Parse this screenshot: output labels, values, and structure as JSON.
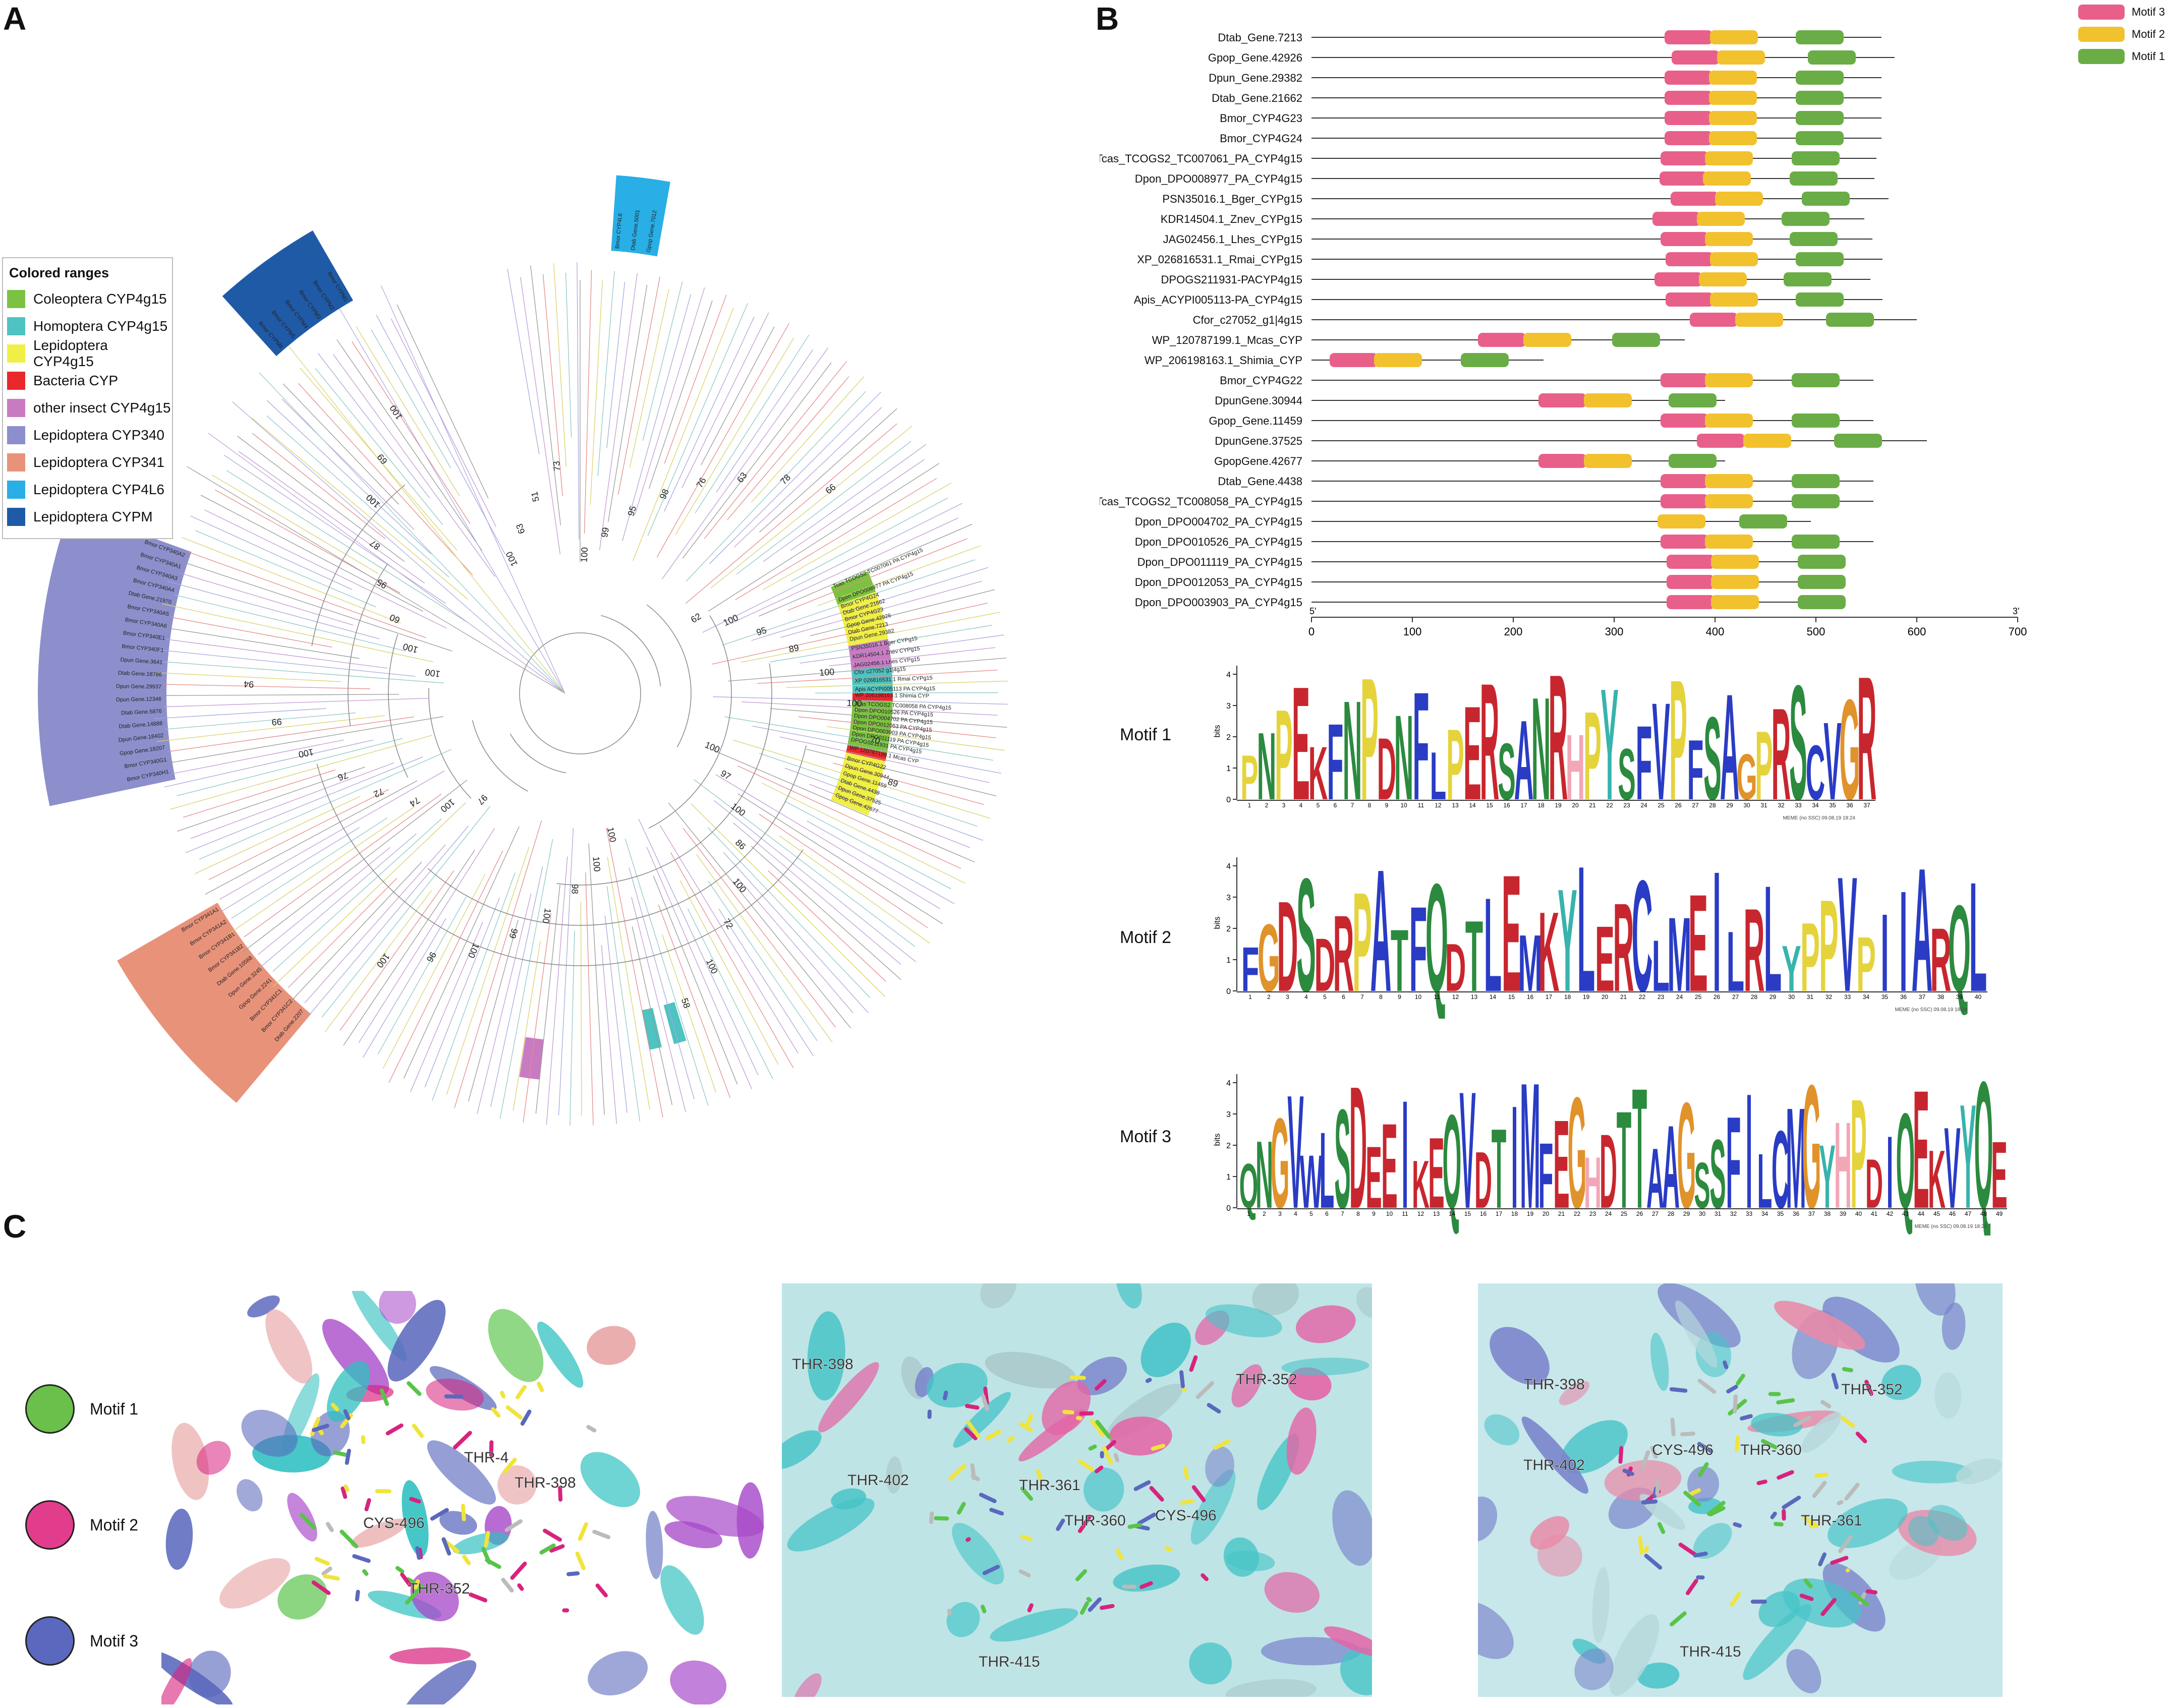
{
  "panels": {
    "a": "A",
    "b": "B",
    "c": "C"
  },
  "legend": {
    "title": "Colored ranges",
    "items": [
      {
        "label": "Coleoptera CYP4g15",
        "color": "#7cc242"
      },
      {
        "label": "Homoptera CYP4g15",
        "color": "#4ec3c1"
      },
      {
        "label": "Lepidoptera CYP4g15",
        "color": "#f0ef45"
      },
      {
        "label": "Bacteria CYP",
        "color": "#e8282b"
      },
      {
        "label": "other insect CYP4g15",
        "color": "#c97bc2"
      },
      {
        "label": "Lepidoptera CYP340",
        "color": "#8c8fcb"
      },
      {
        "label": "Lepidoptera CYP341",
        "color": "#e8927a"
      },
      {
        "label": "Lepidoptera CYP4L6",
        "color": "#29aee6"
      },
      {
        "label": "Lepidoptera CYPM",
        "color": "#1f5aa6"
      }
    ]
  },
  "motif_legend": [
    {
      "label": "Motif 3",
      "color": "#e8608a"
    },
    {
      "label": "Motif 2",
      "color": "#f2c12e"
    },
    {
      "label": "Motif 1",
      "color": "#6aad46"
    }
  ],
  "genes": [
    {
      "name": "Dtab_Gene.7213",
      "len": 565,
      "m": [
        350,
        395,
        480
      ]
    },
    {
      "name": "Gpop_Gene.42926",
      "len": 578,
      "m": [
        357,
        402,
        492
      ]
    },
    {
      "name": "Dpun_Gene.29382",
      "len": 565,
      "m": [
        350,
        394,
        480
      ]
    },
    {
      "name": "Dtab_Gene.21662",
      "len": 565,
      "m": [
        350,
        394,
        480
      ]
    },
    {
      "name": "Bmor_CYP4G23",
      "len": 565,
      "m": [
        350,
        394,
        480
      ]
    },
    {
      "name": "Bmor_CYP4G24",
      "len": 565,
      "m": [
        350,
        394,
        480
      ]
    },
    {
      "name": "Tcas_TCOGS2_TC007061_PA_CYP4g15",
      "len": 560,
      "m": [
        346,
        390,
        476
      ]
    },
    {
      "name": "Dpon_DPO008977_PA_CYP4g15",
      "len": 558,
      "m": [
        345,
        388,
        474
      ]
    },
    {
      "name": "PSN35016.1_Bger_CYPg15",
      "len": 572,
      "m": [
        356,
        400,
        486
      ]
    },
    {
      "name": "KDR14504.1_Znev_CYPg15",
      "len": 548,
      "m": [
        338,
        382,
        466
      ]
    },
    {
      "name": "JAG02456.1_Lhes_CYPg15",
      "len": 556,
      "m": [
        346,
        390,
        474
      ]
    },
    {
      "name": "XP_026816531.1_Rmai_CYPg15",
      "len": 566,
      "m": [
        351,
        395,
        480
      ]
    },
    {
      "name": "DPOGS211931-PACYP4g15",
      "len": 554,
      "m": [
        340,
        384,
        468
      ]
    },
    {
      "name": "Apis_ACYPI005113-PA_CYP4g15",
      "len": 566,
      "m": [
        351,
        395,
        480
      ]
    },
    {
      "name": "Cfor_c27052_g1|4g15",
      "len": 600,
      "m": [
        375,
        420,
        510
      ]
    },
    {
      "name": "WP_120787199.1_Mcas_CYP",
      "len": 370,
      "m": [
        165,
        210,
        298
      ]
    },
    {
      "name": "WP_206198163.1_Shimia_CYP",
      "len": 230,
      "m": [
        18,
        62,
        148
      ]
    },
    {
      "name": "Bmor_CYP4G22",
      "len": 557,
      "m": [
        346,
        390,
        476
      ]
    },
    {
      "name": "DpunGene.30944",
      "len": 410,
      "m": [
        225,
        270,
        354
      ]
    },
    {
      "name": "Gpop_Gene.11459",
      "len": 557,
      "m": [
        346,
        390,
        476
      ]
    },
    {
      "name": "DpunGene.37525",
      "len": 610,
      "m": [
        382,
        428,
        518
      ]
    },
    {
      "name": "GpopGene.42677",
      "len": 410,
      "m": [
        225,
        270,
        354
      ]
    },
    {
      "name": "Dtab_Gene.4438",
      "len": 557,
      "m": [
        346,
        390,
        476
      ]
    },
    {
      "name": "Tcas_TCOGS2_TC008058_PA_CYP4g15",
      "len": 557,
      "m": [
        346,
        390,
        476
      ]
    },
    {
      "name": "Dpon_DPO004702_PA_CYP4g15",
      "len": 495,
      "m": [
        null,
        343,
        424
      ]
    },
    {
      "name": "Dpon_DPO010526_PA_CYP4g15",
      "len": 557,
      "m": [
        346,
        390,
        476
      ]
    },
    {
      "name": "Dpon_DPO011119_PA_CYP4g15",
      "len": 507,
      "m": [
        352,
        396,
        482
      ]
    },
    {
      "name": "Dpon_DPO012053_PA_CYP4g15",
      "len": 507,
      "m": [
        352,
        396,
        482
      ]
    },
    {
      "name": "Dpon_DPO003903_PA_CYP4g15",
      "len": 507,
      "m": [
        352,
        396,
        482
      ]
    }
  ],
  "axis": {
    "ticks": [
      "0",
      "100",
      "200",
      "300",
      "400",
      "500",
      "600",
      "700"
    ],
    "start_label": "5'",
    "end_label": "3'"
  },
  "logos": {
    "motif1": {
      "label": "Motif 1",
      "seq": "PNPEKFNPDNFLPERSANRHPYSFVPFSAGPRSCVGR"
    },
    "motif2": {
      "label": "Motif 2",
      "seq": "FGDSDRPATFQDTLEMKYLERCLMEILRLYPPVPIIARQL"
    },
    "motif3": {
      "label": "Motif 3",
      "seq": "QNGVWLSDEEIKEQVDTIMFEGHDTTAAGSSFILCMGYHPDIQEKVYQE"
    },
    "ylabel": "bits",
    "yticks": [
      "0",
      "1",
      "2",
      "3",
      "4"
    ],
    "credit": "MEME (no SSC) 09.08.19 18:24"
  },
  "structure_legend": [
    {
      "label": "Motif 1",
      "color": "#6ac04a"
    },
    {
      "label": "Motif 2",
      "color": "#e23d8d"
    },
    {
      "label": "Motif 3",
      "color": "#5a68bd"
    }
  ],
  "residues": {
    "p1": [
      "CYS-496",
      "THR-398",
      "THR-352",
      "THR-4"
    ],
    "p2": [
      "THR-398",
      "THR-402",
      "THR-352",
      "THR-361",
      "THR-360",
      "CYS-496",
      "THR-415"
    ],
    "p3": [
      "THR-398",
      "THR-402",
      "CYS-496",
      "THR-360",
      "THR-352",
      "THR-361",
      "THR-415"
    ]
  },
  "tree_labels_arc1": [
    "Bmor CYP340A2",
    "Bmor CYP340A1",
    "Bmor CYP340A3",
    "Bmor CYP340A4",
    "Dtab Gene.21970",
    "Bmor CYP340A5",
    "Bmor CYP340A6",
    "Bmor CYP340E1",
    "Bmor CYP340F1",
    "Dpun Gene.3641",
    "Dtab Gene.18786",
    "Dpun Gene.29937",
    "Dpun Gene.12346",
    "Dtab Gene.5876",
    "Dtab Gene.14888",
    "Dpun Gene.18402",
    "Gpop Gene.18207",
    "Bmor CYP340G1",
    "Bmor CYP340H1"
  ],
  "tree_labels_arc2": [
    "Bmor CYP341A1",
    "Bmor CYP341A2",
    "Bmor CYP341B1",
    "Bmor CYP341B2",
    "Dtab Gene.10568",
    "Dpun Gene.3245",
    "Gpop Gene.2241",
    "Bmor CYP341C1",
    "Bmor CYP341C2",
    "Dtab Gene.2207"
  ],
  "tree_labels_green": [
    "Tcas TCOGS2 TC007061 PA CYP4g15",
    "Dpon DPO008977 PA CYP4g15"
  ],
  "tree_labels_yellow": [
    "Bmor CYP4G24",
    "Dtab Gene.21662",
    "Bmor CYP4G23",
    "Gpop Gene.42926",
    "Dtab Gene.7213",
    "Dpun Gene.29382"
  ],
  "tree_labels_purple": [
    "PSN35016.1 Bger CYPg15",
    "KDR14504.1 Znev CYPg15",
    "JAG02456.1 Lhes CYPg15"
  ],
  "tree_labels_teal": [
    "Cfor c27052 g1|4g15",
    "XP 026816531.1 Rmai CYPg15",
    "Apis ACYPI005113 PA CYP4g15"
  ],
  "tree_labels_red": [
    "WP 206198163.1 Shimia CYP"
  ],
  "tree_labels_green2": [
    "Tcas TCOGS2 TC008058 PA CYP4g15",
    "Dpon DPO010526 PA CYP4g15",
    "Dpon DPO004702 PA CYP4g15",
    "Dpon DPO012053 PA CYP4g15",
    "Dpon DPO003903 PA CYP4g15",
    "Dpon DPO011119 PA CYP4g15",
    "DPOGS211931 PA CYP4g15"
  ],
  "tree_labels_red2": [
    "WP 120787199.1 Mcas CYP"
  ],
  "tree_labels_yellow2": [
    "Bmor CYP4G22",
    "Dpun Gene.30944",
    "Gpop Gene.11459",
    "Dtab Gene.4438",
    "Dpun Gene.37525",
    "Gpop Gene.42677"
  ],
  "tree_labels_cypm": [
    "Bmor CYPM1",
    "Bmor CYPM2",
    "Bmor CYPM3",
    "Bmor CYPM4",
    "Bmor CYPM5",
    "Bmor CYPM6"
  ],
  "tree_labels_4l6": [
    "Bmor CYP4L6",
    "Dtab Gene.5001",
    "Gpop Gene.7012"
  ],
  "bootstrap": [
    "100",
    "99",
    "95",
    "98",
    "76",
    "63",
    "78",
    "66",
    "62",
    "100",
    "95",
    "89",
    "100",
    "100",
    "70",
    "89",
    "100",
    "97",
    "100",
    "86",
    "100",
    "72",
    "100",
    "58",
    "100",
    "100",
    "98",
    "100",
    "99",
    "100",
    "96",
    "100",
    "97",
    "100",
    "74",
    "72",
    "76",
    "100",
    "99",
    "94",
    "100",
    "100",
    "60",
    "95",
    "87",
    "100",
    "69",
    "100",
    "100",
    "63",
    "51",
    "73"
  ]
}
